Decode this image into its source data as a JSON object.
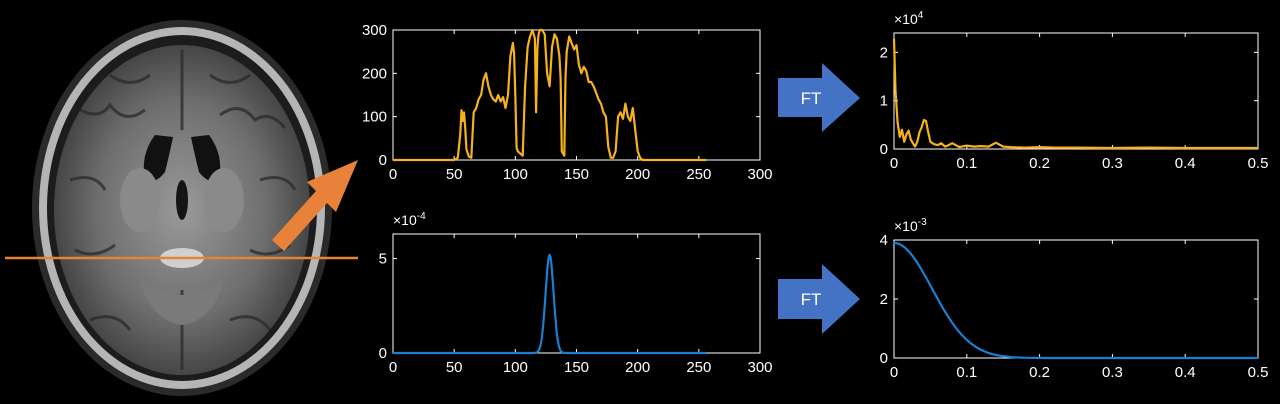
{
  "colors": {
    "signal": "#f6b21a",
    "kernel": "#1a7fd0",
    "arrow_orange": "#e8823a",
    "arrow_blue": "#4472c4",
    "line_orange": "#e8823a"
  },
  "image": {
    "name": "mri-brain-axial-slice"
  },
  "arrows": [
    {
      "label": "FT"
    },
    {
      "label": "FT"
    }
  ],
  "chart_data": [
    {
      "type": "line",
      "series": [
        {
          "color": "#f6b21a",
          "x": [
            0,
            50,
            53,
            55,
            56,
            57,
            58,
            59,
            60,
            62,
            64,
            66,
            68,
            70,
            72,
            74,
            76,
            78,
            80,
            82,
            84,
            86,
            88,
            90,
            92,
            94,
            96,
            98,
            99,
            100,
            101,
            102,
            104,
            106,
            108,
            110,
            112,
            114,
            116,
            117,
            118,
            119,
            120,
            122,
            124,
            126,
            128,
            130,
            132,
            134,
            136,
            137,
            138,
            139,
            140,
            141,
            142,
            144,
            146,
            148,
            150,
            152,
            154,
            156,
            158,
            160,
            162,
            164,
            166,
            168,
            170,
            172,
            174,
            176,
            178,
            180,
            182,
            184,
            186,
            188,
            190,
            192,
            194,
            196,
            198,
            200,
            202,
            204,
            206,
            208,
            210,
            256
          ],
          "y": [
            0,
            0,
            5,
            60,
            115,
            90,
            110,
            75,
            25,
            8,
            5,
            110,
            120,
            140,
            150,
            185,
            200,
            170,
            150,
            140,
            135,
            150,
            135,
            145,
            120,
            150,
            240,
            270,
            245,
            150,
            28,
            20,
            15,
            10,
            170,
            260,
            285,
            300,
            280,
            110,
            260,
            290,
            300,
            300,
            290,
            200,
            170,
            260,
            290,
            280,
            240,
            190,
            20,
            15,
            10,
            190,
            250,
            285,
            270,
            255,
            265,
            220,
            200,
            215,
            205,
            180,
            180,
            170,
            155,
            140,
            130,
            110,
            100,
            30,
            5,
            5,
            20,
            100,
            110,
            95,
            130,
            100,
            90,
            120,
            70,
            20,
            5,
            0,
            0,
            0,
            0,
            0
          ]
        }
      ],
      "xlim": [
        0,
        300
      ],
      "ylim": [
        0,
        300
      ],
      "xticks": [
        0,
        50,
        100,
        150,
        200,
        250,
        300
      ],
      "yticks": [
        0,
        100,
        200,
        300
      ],
      "xtick_labels": [
        "0",
        "50",
        "100",
        "150",
        "200",
        "250",
        "300"
      ],
      "ytick_labels": [
        "0",
        "100",
        "200",
        "300"
      ],
      "exponent": null
    },
    {
      "type": "line",
      "series": [
        {
          "color": "#1a7fd0",
          "gaussian": {
            "amplitude": 5.2,
            "center": 128,
            "sigma": 3.3
          },
          "xrange": [
            0,
            256
          ]
        }
      ],
      "xlim": [
        0,
        300
      ],
      "ylim": [
        0,
        6.3
      ],
      "xticks": [
        0,
        50,
        100,
        150,
        200,
        250,
        300
      ],
      "yticks": [
        0,
        5
      ],
      "xtick_labels": [
        "0",
        "50",
        "100",
        "150",
        "200",
        "250",
        "300"
      ],
      "ytick_labels": [
        "0",
        "5"
      ],
      "exponent": {
        "base": "×10",
        "power": "-4"
      }
    },
    {
      "type": "line",
      "series": [
        {
          "color": "#f6b21a",
          "x": [
            0,
            0.002,
            0.005,
            0.008,
            0.011,
            0.014,
            0.017,
            0.02,
            0.023,
            0.026,
            0.029,
            0.032,
            0.035,
            0.038,
            0.041,
            0.044,
            0.047,
            0.05,
            0.055,
            0.06,
            0.065,
            0.07,
            0.075,
            0.08,
            0.09,
            0.1,
            0.11,
            0.12,
            0.13,
            0.14,
            0.15,
            0.16,
            0.18,
            0.2,
            0.22,
            0.25,
            0.3,
            0.35,
            0.4,
            0.45,
            0.5
          ],
          "y": [
            2.28,
            1.2,
            0.55,
            0.25,
            0.4,
            0.15,
            0.3,
            0.38,
            0.2,
            0.12,
            0.05,
            0.15,
            0.35,
            0.45,
            0.6,
            0.58,
            0.35,
            0.15,
            0.1,
            0.08,
            0.12,
            0.05,
            0.08,
            0.12,
            0.04,
            0.07,
            0.05,
            0.06,
            0.05,
            0.13,
            0.05,
            0.04,
            0.03,
            0.04,
            0.03,
            0.03,
            0.02,
            0.03,
            0.02,
            0.02,
            0.02
          ]
        }
      ],
      "xlim": [
        0,
        0.5
      ],
      "ylim": [
        0,
        2.4
      ],
      "xticks": [
        0,
        0.1,
        0.2,
        0.3,
        0.4,
        0.5
      ],
      "yticks": [
        0,
        1,
        2
      ],
      "xtick_labels": [
        "0",
        "0.1",
        "0.2",
        "0.3",
        "0.4",
        "0.5"
      ],
      "ytick_labels": [
        "0",
        "1",
        "2"
      ],
      "exponent": {
        "base": "×10",
        "power": "4"
      }
    },
    {
      "type": "line",
      "series": [
        {
          "color": "#1a7fd0",
          "gaussian": {
            "amplitude": 3.9,
            "center": 0,
            "sigma": 0.052
          },
          "xrange": [
            0,
            0.5
          ]
        }
      ],
      "xlim": [
        0,
        0.5
      ],
      "ylim": [
        0,
        4
      ],
      "xticks": [
        0,
        0.1,
        0.2,
        0.3,
        0.4,
        0.5
      ],
      "yticks": [
        0,
        2,
        4
      ],
      "xtick_labels": [
        "0",
        "0.1",
        "0.2",
        "0.3",
        "0.4",
        "0.5"
      ],
      "ytick_labels": [
        "0",
        "2",
        "4"
      ],
      "exponent": {
        "base": "×10",
        "power": "-3"
      }
    }
  ]
}
